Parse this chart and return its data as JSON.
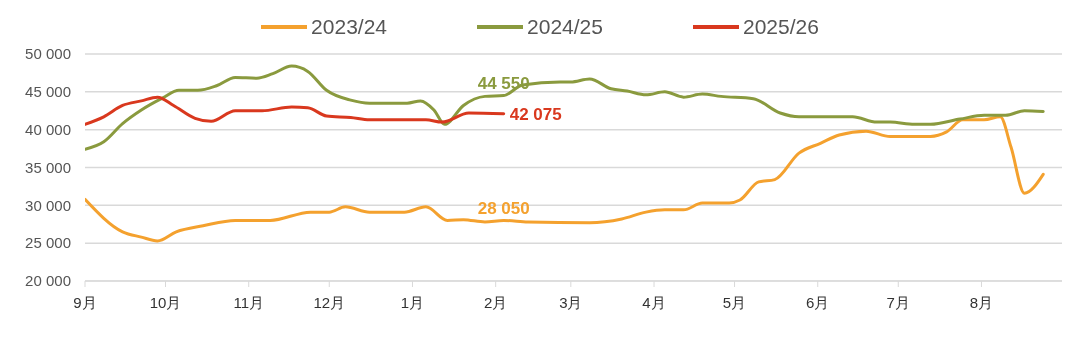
{
  "chart_data": {
    "type": "line",
    "xlim": [
      "2025-09-01",
      "2026-08-31"
    ],
    "xticks": [
      {
        "value": "2025-09-01",
        "label": "9月"
      },
      {
        "value": "2025-10-01",
        "label": "10月"
      },
      {
        "value": "2025-11-01",
        "label": "11月"
      },
      {
        "value": "2025-12-01",
        "label": "12月"
      },
      {
        "value": "2026-01-01",
        "label": "1月"
      },
      {
        "value": "2026-02-01",
        "label": "2月"
      },
      {
        "value": "2026-03-01",
        "label": "3月"
      },
      {
        "value": "2026-04-01",
        "label": "4月"
      },
      {
        "value": "2026-05-01",
        "label": "5月"
      },
      {
        "value": "2026-06-01",
        "label": "6月"
      },
      {
        "value": "2026-07-01",
        "label": "7月"
      },
      {
        "value": "2026-08-01",
        "label": "8月"
      }
    ],
    "ylim": [
      20000,
      50000
    ],
    "yticks": [
      {
        "value": 20000,
        "label": "20 000"
      },
      {
        "value": 25000,
        "label": "25 000"
      },
      {
        "value": 30000,
        "label": "30 000"
      },
      {
        "value": 35000,
        "label": "35 000"
      },
      {
        "value": 40000,
        "label": "40 000"
      },
      {
        "value": 45000,
        "label": "45 000"
      },
      {
        "value": 50000,
        "label": "50 000"
      }
    ],
    "grid": "y",
    "legend": "top",
    "marker": "none",
    "line_style": "solid",
    "series": [
      {
        "name": "2023/24",
        "color": "#f4a12e",
        "x": [
          "2025-09-01",
          "2025-09-15",
          "2025-09-22",
          "2025-09-28",
          "2025-10-05",
          "2025-10-15",
          "2025-10-27",
          "2025-11-09",
          "2025-11-24",
          "2025-12-01",
          "2025-12-07",
          "2025-12-16",
          "2025-12-29",
          "2026-01-06",
          "2026-01-14",
          "2026-01-20",
          "2026-01-28",
          "2026-02-04",
          "2026-02-13",
          "2026-03-08",
          "2026-03-20",
          "2026-03-29",
          "2026-04-05",
          "2026-04-12",
          "2026-04-19",
          "2026-04-29",
          "2026-05-03",
          "2026-05-10",
          "2026-05-16",
          "2026-05-25",
          "2026-06-02",
          "2026-06-09",
          "2026-06-19",
          "2026-06-28",
          "2026-07-13",
          "2026-07-19",
          "2026-07-25",
          "2026-08-02",
          "2026-08-08",
          "2026-08-12",
          "2026-08-17",
          "2026-08-24"
        ],
        "values": [
          30800,
          26500,
          25800,
          25300,
          26500,
          27300,
          28000,
          28000,
          29100,
          29100,
          29800,
          29100,
          29100,
          29800,
          28000,
          28100,
          27800,
          28000,
          27800,
          27700,
          28200,
          29100,
          29400,
          29400,
          30300,
          30300,
          30700,
          33100,
          33400,
          36900,
          38200,
          39300,
          39800,
          39100,
          39100,
          39700,
          41300,
          41300,
          41700,
          37700,
          31600,
          34100
        ]
      },
      {
        "name": "2024/25",
        "color": "#8a9a3e",
        "x": [
          "2025-09-01",
          "2025-09-08",
          "2025-09-15",
          "2025-09-22",
          "2025-09-30",
          "2025-10-06",
          "2025-10-13",
          "2025-10-20",
          "2025-10-27",
          "2025-11-04",
          "2025-11-10",
          "2025-11-17",
          "2025-11-23",
          "2025-11-30",
          "2025-12-09",
          "2025-12-16",
          "2025-12-30",
          "2026-01-04",
          "2026-01-09",
          "2026-01-13",
          "2026-01-20",
          "2026-01-28",
          "2026-02-04",
          "2026-02-11",
          "2026-02-25",
          "2026-03-01",
          "2026-03-08",
          "2026-03-16",
          "2026-03-22",
          "2026-03-29",
          "2026-04-05",
          "2026-04-12",
          "2026-04-19",
          "2026-04-26",
          "2026-05-08",
          "2026-05-18",
          "2026-05-25",
          "2026-06-14",
          "2026-06-23",
          "2026-06-28",
          "2026-07-07",
          "2026-07-13",
          "2026-07-24",
          "2026-08-02",
          "2026-08-10",
          "2026-08-17",
          "2026-08-24"
        ],
        "values": [
          37400,
          38400,
          40800,
          42600,
          44200,
          45200,
          45200,
          45800,
          46900,
          46800,
          47400,
          48400,
          47700,
          45200,
          43900,
          43500,
          43500,
          43800,
          42600,
          40700,
          43200,
          44400,
          44500,
          45900,
          46300,
          46300,
          46700,
          45400,
          45100,
          44600,
          45000,
          44300,
          44700,
          44400,
          44100,
          42200,
          41700,
          41700,
          41000,
          41000,
          40700,
          40700,
          41400,
          41900,
          41900,
          42500,
          42400
        ]
      },
      {
        "name": "2025/26",
        "color": "#d9381e",
        "x": [
          "2025-09-01",
          "2025-09-08",
          "2025-09-15",
          "2025-09-22",
          "2025-09-28",
          "2025-10-04",
          "2025-10-12",
          "2025-10-18",
          "2025-10-27",
          "2025-11-06",
          "2025-11-17",
          "2025-11-23",
          "2025-11-30",
          "2025-12-09",
          "2025-12-16",
          "2026-01-06",
          "2026-01-12",
          "2026-01-22",
          "2026-02-04"
        ],
        "values": [
          40700,
          41700,
          43200,
          43800,
          44300,
          43200,
          41500,
          41100,
          42500,
          42500,
          43000,
          42900,
          41800,
          41600,
          41300,
          41300,
          41000,
          42200,
          42100
        ]
      }
    ],
    "annotations": [
      {
        "text": "44 550",
        "x": "2026-02-04",
        "y": 44550
      },
      {
        "text": "42 075",
        "x": "2026-02-04",
        "y": 42075
      },
      {
        "text": "28 050",
        "x": "2026-02-04",
        "y": 28050
      }
    ]
  }
}
